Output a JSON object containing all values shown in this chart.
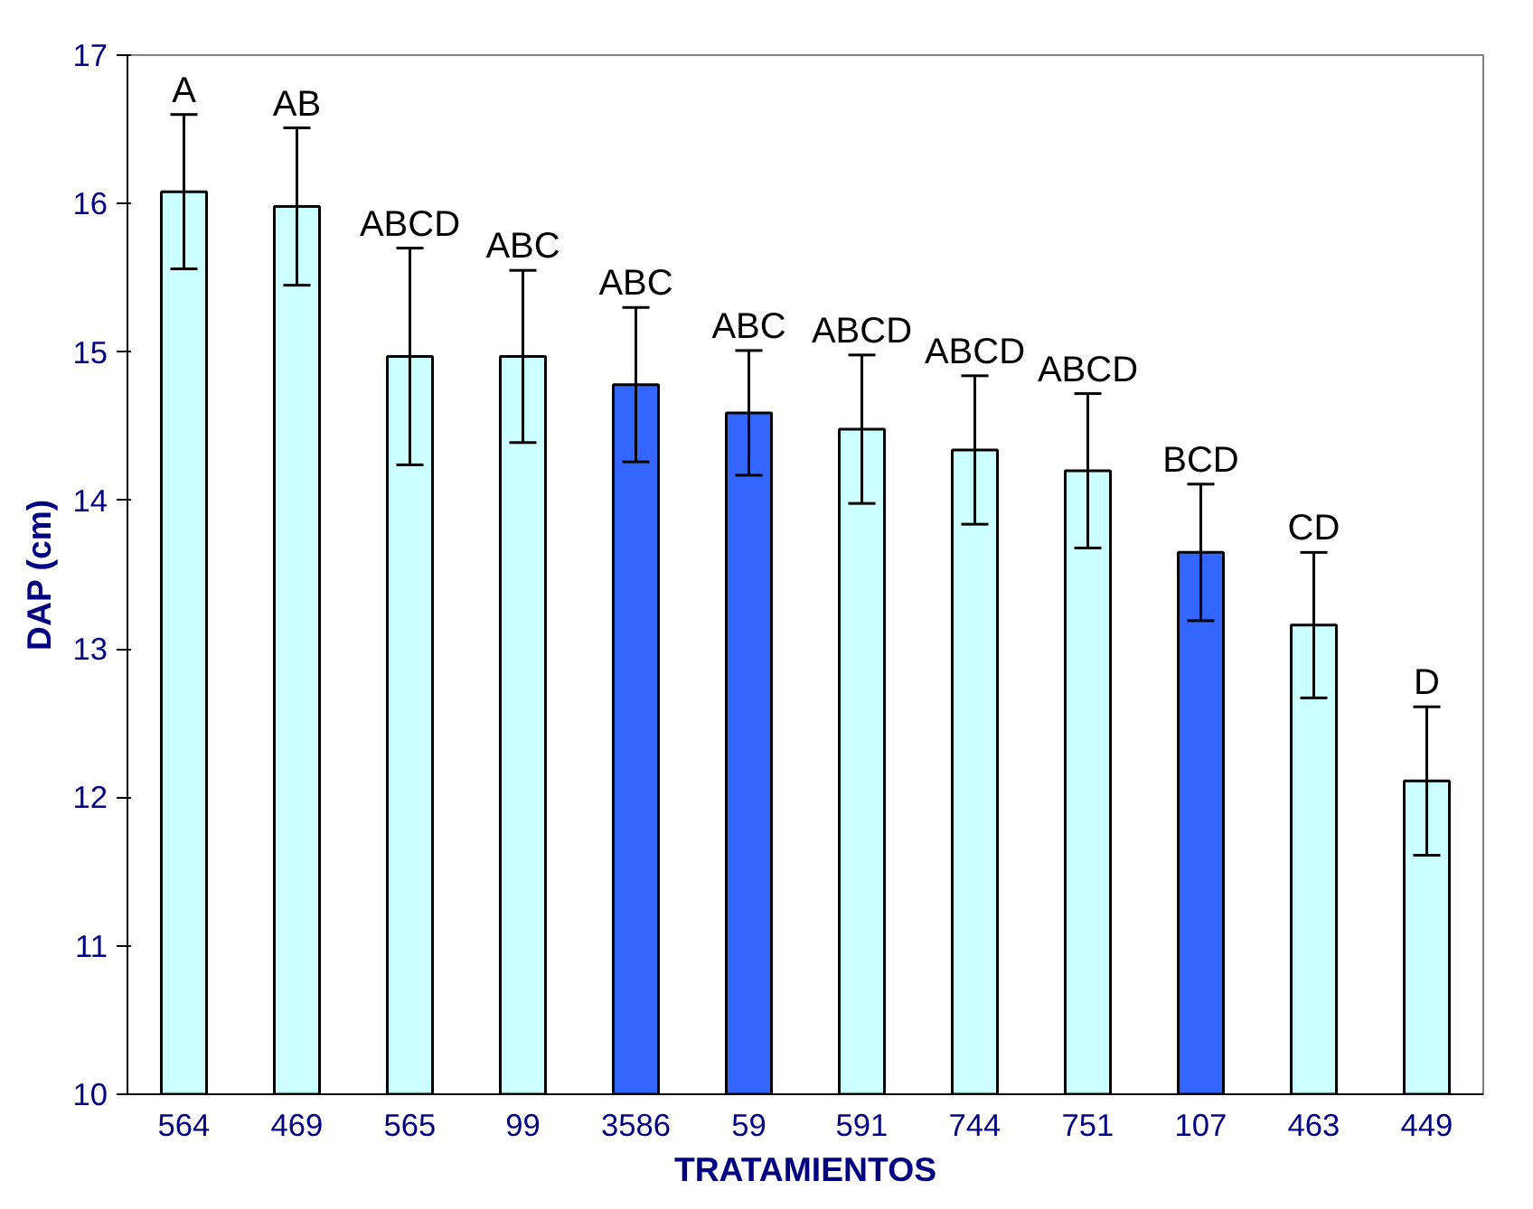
{
  "chart_data": {
    "type": "bar",
    "xlabel": "TRATAMIENTOS",
    "ylabel": "DAP (cm)",
    "categories": [
      "564",
      "469",
      "565",
      "99",
      "3586",
      "59",
      "591",
      "744",
      "751",
      "107",
      "463",
      "449"
    ],
    "values": [
      16.08,
      15.98,
      14.97,
      14.97,
      14.78,
      14.59,
      14.48,
      14.34,
      14.2,
      13.65,
      13.16,
      12.11
    ],
    "errors": [
      0.52,
      0.53,
      0.73,
      0.58,
      0.52,
      0.42,
      0.5,
      0.5,
      0.52,
      0.46,
      0.49,
      0.5
    ],
    "colors": [
      "#ccffff",
      "#ccffff",
      "#ccffff",
      "#ccffff",
      "#3366ff",
      "#3366ff",
      "#ccffff",
      "#ccffff",
      "#ccffff",
      "#3366ff",
      "#ccffff",
      "#ccffff"
    ],
    "value_labels": [
      "A",
      "AB",
      "ABCD",
      "ABC",
      "ABC",
      "ABC",
      "ABCD",
      "ABCD",
      "ABCD",
      "BCD",
      "CD",
      "D"
    ],
    "ylim": [
      10,
      17
    ],
    "yticks": [
      10,
      11,
      12,
      13,
      14,
      15,
      16,
      17
    ],
    "grid": false
  }
}
